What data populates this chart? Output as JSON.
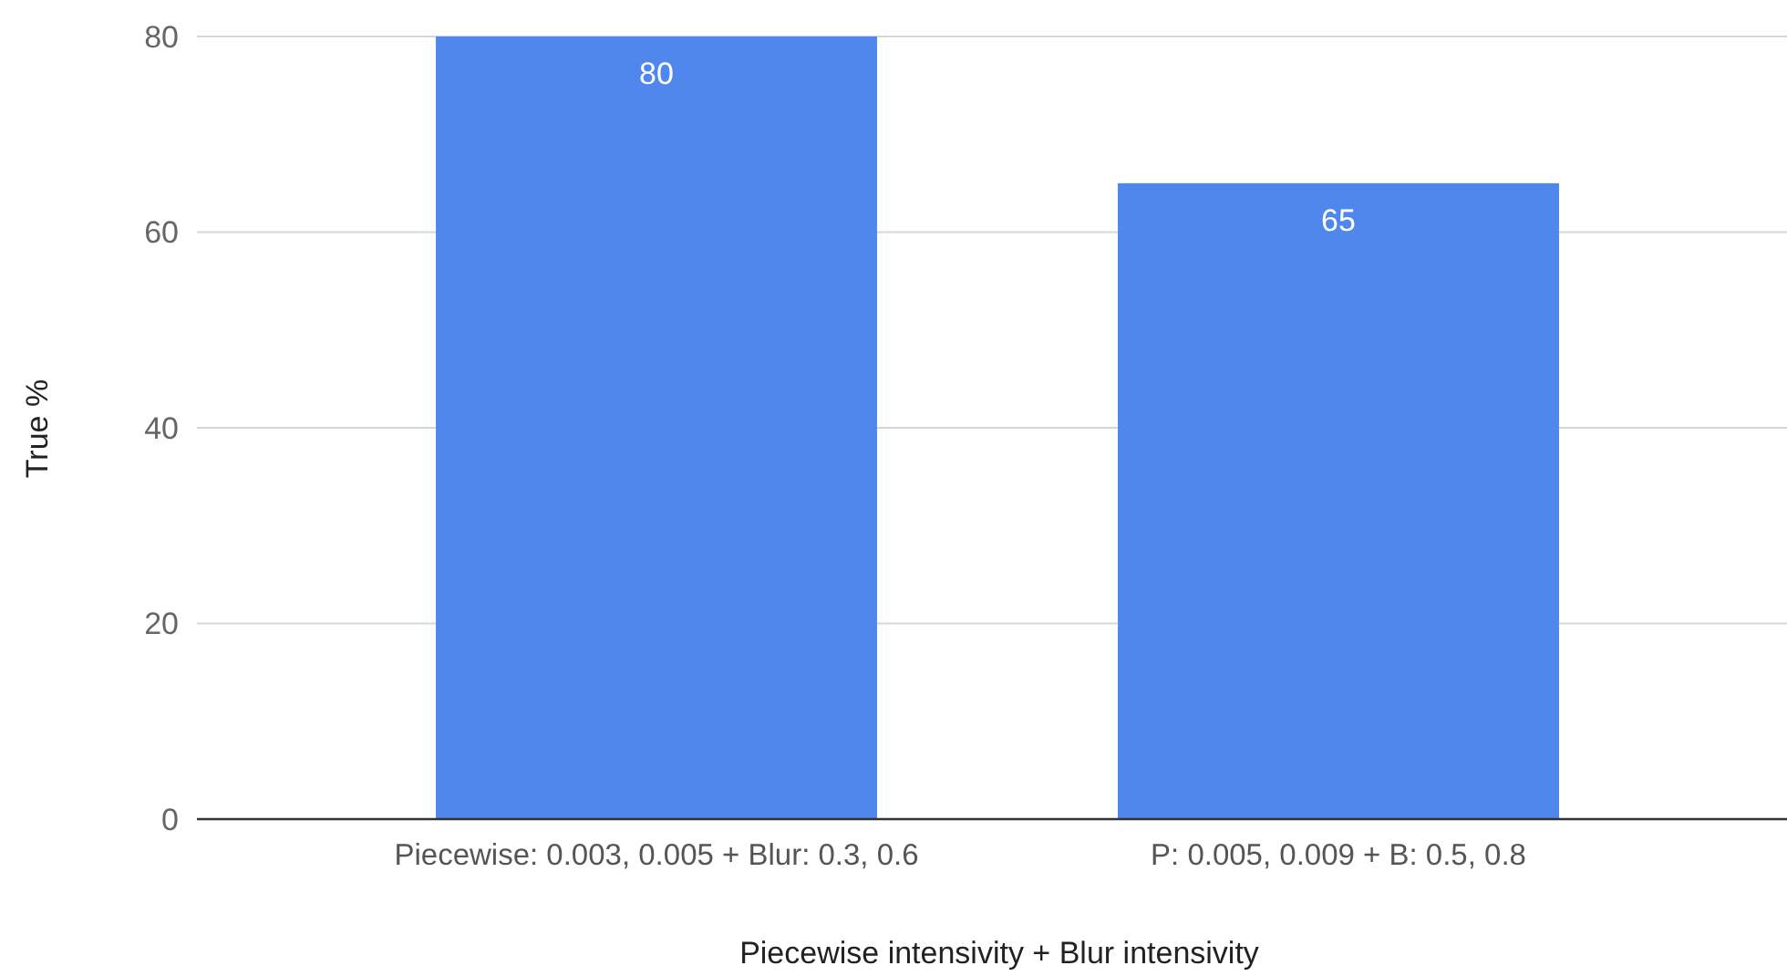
{
  "chart_data": {
    "type": "bar",
    "xlabel": "Piecewise intensivity + Blur intensivity",
    "ylabel": "True %",
    "categories": [
      "Piecewise: 0.003, 0.005 + Blur: 0.3, 0.6",
      "P: 0.005, 0.009 + B: 0.5, 0.8"
    ],
    "values": [
      80,
      65
    ],
    "color": "#4f87ec",
    "ylim": [
      0,
      80
    ],
    "yticks": [
      0,
      20,
      40,
      60,
      80
    ],
    "grid": "y",
    "data_labels": true
  }
}
